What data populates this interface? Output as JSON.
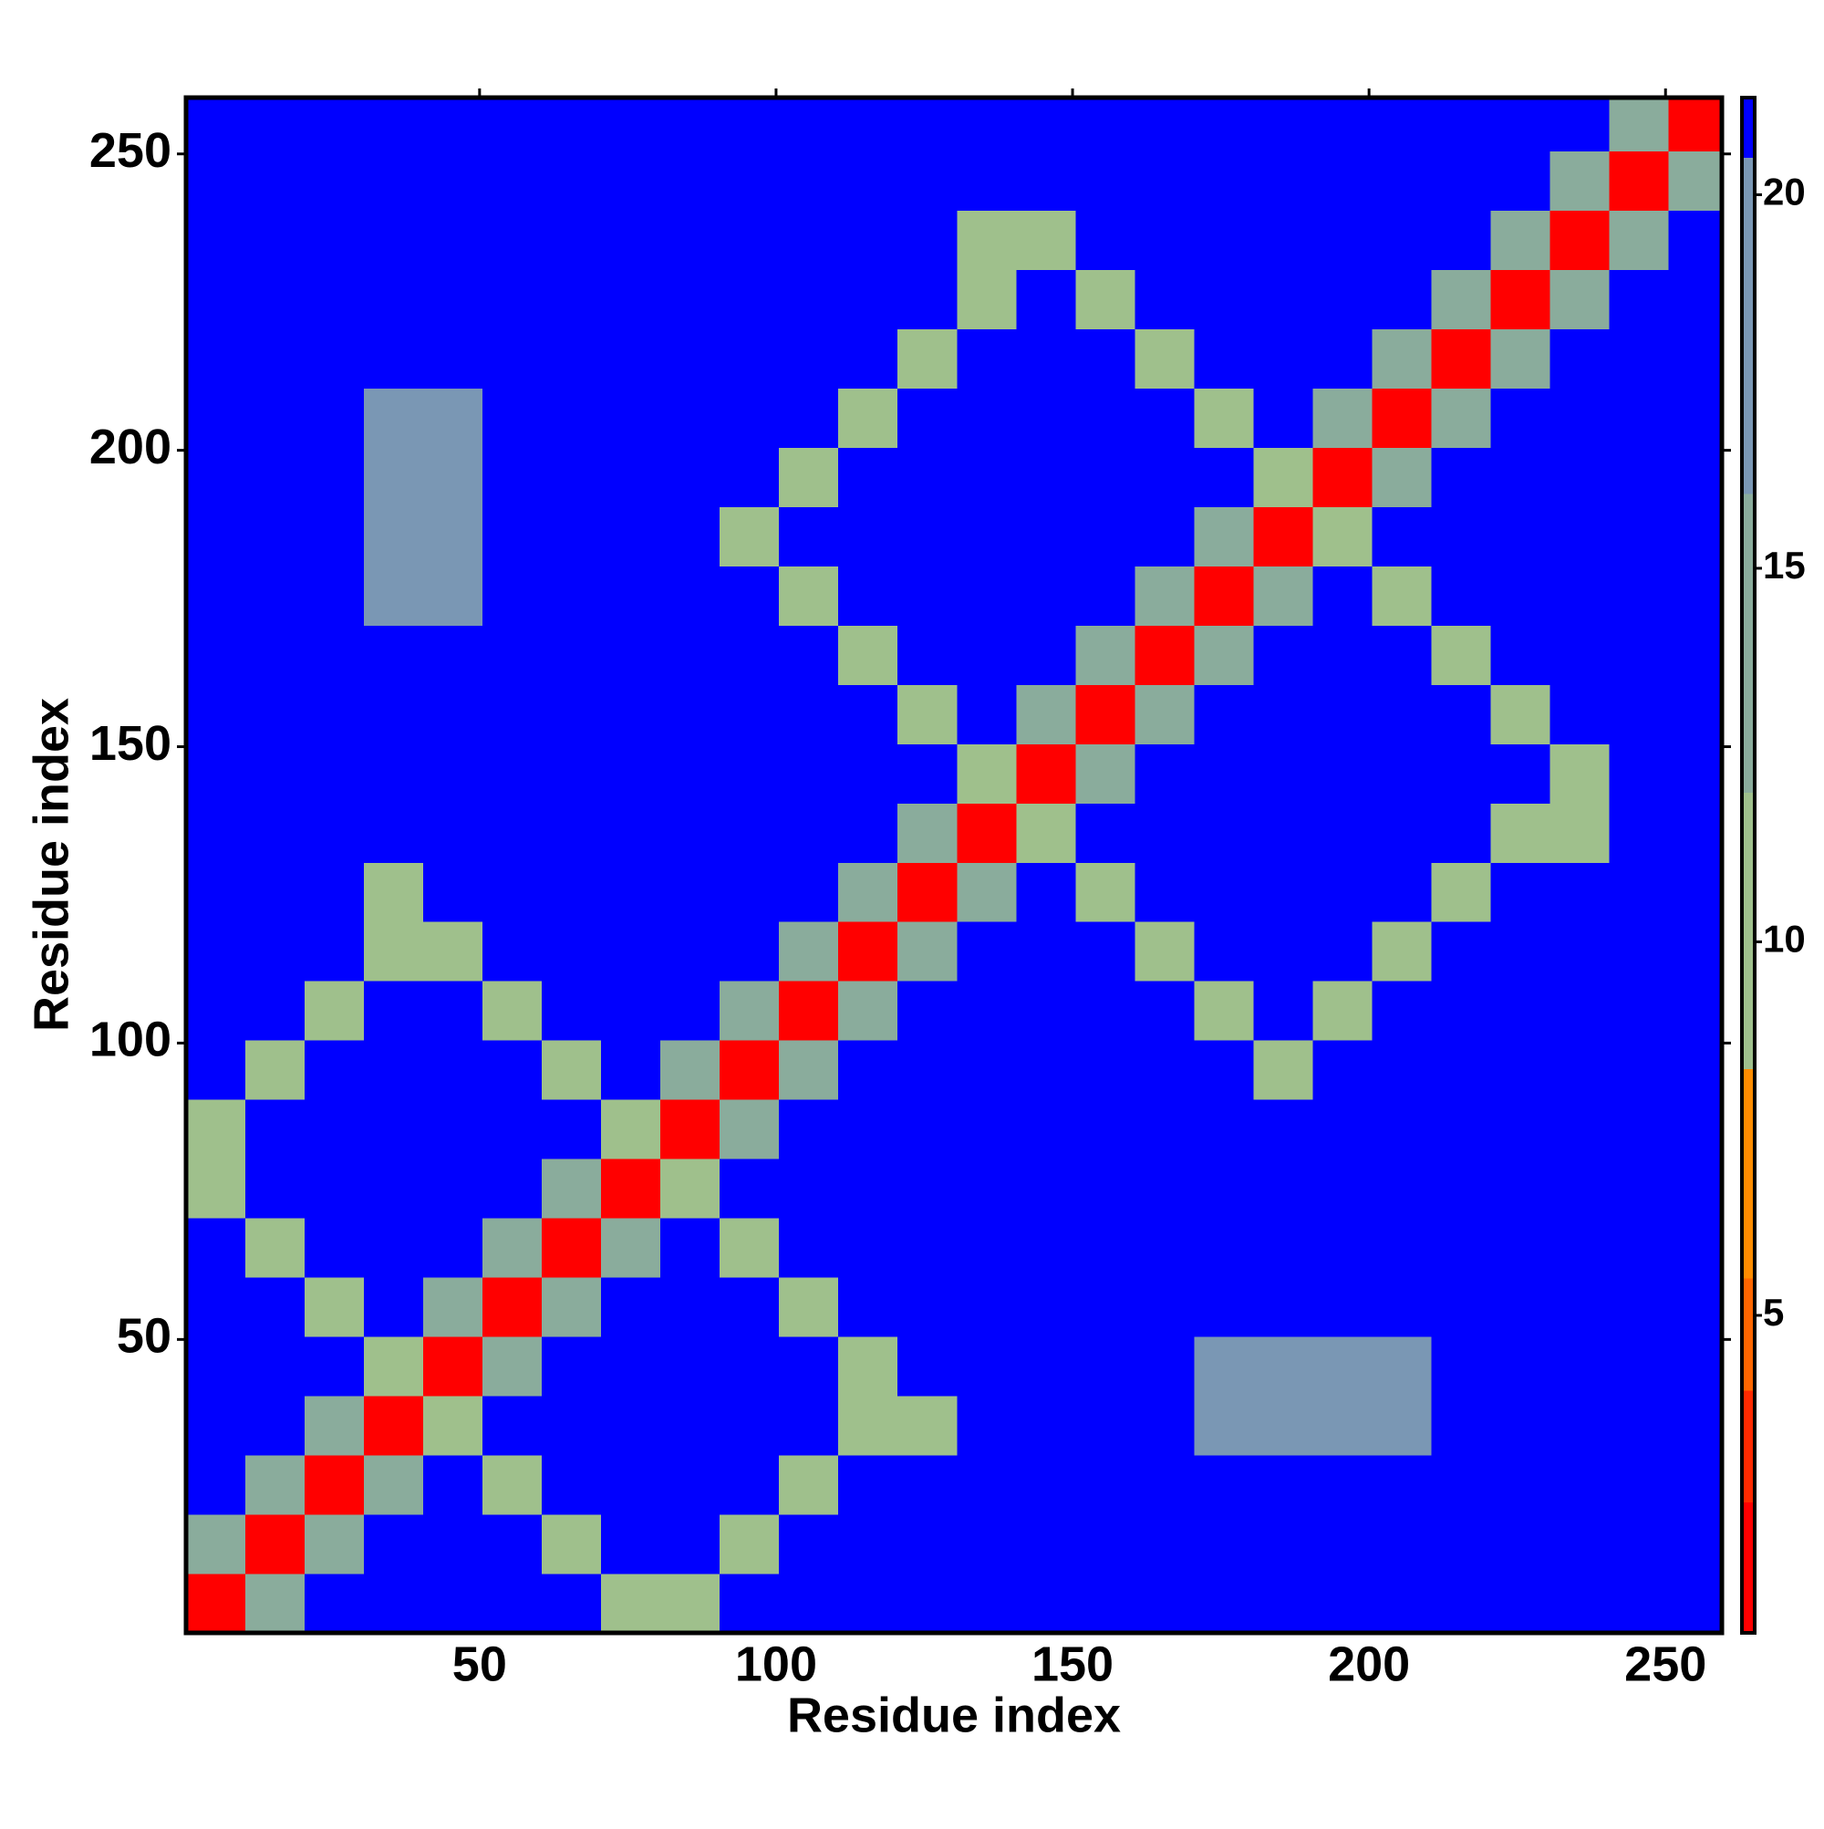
{
  "chart_data": {
    "type": "heatmap",
    "xlabel": "Residue index",
    "ylabel": "Residue index",
    "xlim": [
      0.5,
      259.5
    ],
    "ylim": [
      0.5,
      259.5
    ],
    "xticks": [
      50,
      100,
      150,
      200,
      250
    ],
    "yticks": [
      50,
      100,
      150,
      200,
      250
    ],
    "xbins": [
      0.5,
      10.5,
      20.5,
      30.5,
      40.5,
      50.5,
      60.5,
      70.5,
      80.5,
      90.5,
      100.5,
      110.5,
      120.5,
      130.5,
      140.5,
      150.5,
      160.5,
      170.5,
      180.5,
      190.5,
      200.5,
      210.5,
      220.5,
      230.5,
      240.5,
      250.5,
      259.5
    ],
    "ybins": [
      0.5,
      10.5,
      20.5,
      30.5,
      40.5,
      50.5,
      60.5,
      70.5,
      80.5,
      90.5,
      100.5,
      110.5,
      120.5,
      130.5,
      140.5,
      150.5,
      160.5,
      170.5,
      180.5,
      190.5,
      200.5,
      210.5,
      220.5,
      230.5,
      240.5,
      250.5,
      259.5
    ],
    "values": [
      [
        2,
        12,
        21,
        21,
        21,
        21,
        21,
        11,
        11,
        21,
        21,
        21,
        21,
        21,
        21,
        21,
        21,
        21,
        21,
        21,
        21,
        21,
        21,
        21,
        21,
        21
      ],
      [
        12,
        2,
        12,
        21,
        21,
        21,
        11,
        21,
        21,
        11,
        21,
        21,
        21,
        21,
        21,
        21,
        21,
        21,
        21,
        21,
        21,
        21,
        21,
        21,
        21,
        21
      ],
      [
        21,
        12,
        2,
        12,
        21,
        11,
        21,
        21,
        21,
        21,
        11,
        21,
        21,
        21,
        21,
        21,
        21,
        21,
        21,
        21,
        21,
        21,
        21,
        21,
        21,
        21
      ],
      [
        21,
        21,
        12,
        2,
        11,
        21,
        21,
        21,
        21,
        21,
        21,
        11,
        11,
        21,
        21,
        21,
        21,
        19,
        19,
        19,
        19,
        21,
        21,
        21,
        21,
        21
      ],
      [
        21,
        21,
        21,
        11,
        2,
        12,
        21,
        21,
        21,
        21,
        21,
        11,
        21,
        21,
        21,
        21,
        21,
        19,
        19,
        19,
        19,
        21,
        21,
        21,
        21,
        21
      ],
      [
        21,
        21,
        11,
        21,
        12,
        2,
        12,
        21,
        21,
        21,
        11,
        21,
        21,
        21,
        21,
        21,
        21,
        21,
        21,
        21,
        21,
        21,
        21,
        21,
        21,
        21
      ],
      [
        21,
        11,
        21,
        21,
        21,
        12,
        2,
        12,
        21,
        11,
        21,
        21,
        21,
        21,
        21,
        21,
        21,
        21,
        21,
        21,
        21,
        21,
        21,
        21,
        21,
        21
      ],
      [
        11,
        21,
        21,
        21,
        21,
        21,
        12,
        2,
        11,
        21,
        21,
        21,
        21,
        21,
        21,
        21,
        21,
        21,
        21,
        21,
        21,
        21,
        21,
        21,
        21,
        21
      ],
      [
        11,
        21,
        21,
        21,
        21,
        21,
        21,
        11,
        2,
        12,
        21,
        21,
        21,
        21,
        21,
        21,
        21,
        21,
        21,
        21,
        21,
        21,
        21,
        21,
        21,
        21
      ],
      [
        21,
        11,
        21,
        21,
        21,
        21,
        11,
        21,
        12,
        2,
        12,
        21,
        21,
        21,
        21,
        21,
        21,
        21,
        11,
        21,
        21,
        21,
        21,
        21,
        21,
        21
      ],
      [
        21,
        21,
        11,
        21,
        21,
        11,
        21,
        21,
        21,
        12,
        2,
        12,
        21,
        21,
        21,
        21,
        21,
        11,
        21,
        11,
        21,
        21,
        21,
        21,
        21,
        21
      ],
      [
        21,
        21,
        21,
        11,
        11,
        21,
        21,
        21,
        21,
        21,
        12,
        2,
        12,
        21,
        21,
        21,
        11,
        21,
        21,
        21,
        11,
        21,
        21,
        21,
        21,
        21
      ],
      [
        21,
        21,
        21,
        11,
        21,
        21,
        21,
        21,
        21,
        21,
        21,
        12,
        2,
        12,
        21,
        11,
        21,
        21,
        21,
        21,
        21,
        11,
        21,
        21,
        21,
        21
      ],
      [
        21,
        21,
        21,
        21,
        21,
        21,
        21,
        21,
        21,
        21,
        21,
        21,
        12,
        2,
        11,
        21,
        21,
        21,
        21,
        21,
        21,
        21,
        11,
        11,
        21,
        21
      ],
      [
        21,
        21,
        21,
        21,
        21,
        21,
        21,
        21,
        21,
        21,
        21,
        21,
        21,
        11,
        2,
        12,
        21,
        21,
        21,
        21,
        21,
        21,
        21,
        11,
        21,
        21
      ],
      [
        21,
        21,
        21,
        21,
        21,
        21,
        21,
        21,
        21,
        21,
        21,
        21,
        11,
        21,
        12,
        2,
        12,
        21,
        21,
        21,
        21,
        21,
        11,
        21,
        21,
        21
      ],
      [
        21,
        21,
        21,
        21,
        21,
        21,
        21,
        21,
        21,
        21,
        21,
        11,
        21,
        21,
        21,
        12,
        2,
        12,
        21,
        21,
        21,
        11,
        21,
        21,
        21,
        21
      ],
      [
        21,
        21,
        21,
        19,
        19,
        21,
        21,
        21,
        21,
        21,
        11,
        21,
        21,
        21,
        21,
        21,
        12,
        2,
        12,
        21,
        11,
        21,
        21,
        21,
        21,
        21
      ],
      [
        21,
        21,
        21,
        19,
        19,
        21,
        21,
        21,
        21,
        11,
        21,
        21,
        21,
        21,
        21,
        21,
        21,
        12,
        2,
        11,
        21,
        21,
        21,
        21,
        21,
        21
      ],
      [
        21,
        21,
        21,
        19,
        19,
        21,
        21,
        21,
        21,
        21,
        11,
        21,
        21,
        21,
        21,
        21,
        21,
        21,
        11,
        2,
        12,
        21,
        21,
        21,
        21,
        21
      ],
      [
        21,
        21,
        21,
        19,
        19,
        21,
        21,
        21,
        21,
        21,
        21,
        11,
        21,
        21,
        21,
        21,
        21,
        11,
        21,
        12,
        2,
        12,
        21,
        21,
        21,
        21
      ],
      [
        21,
        21,
        21,
        21,
        21,
        21,
        21,
        21,
        21,
        21,
        21,
        21,
        11,
        21,
        21,
        21,
        11,
        21,
        21,
        21,
        12,
        2,
        12,
        21,
        21,
        21
      ],
      [
        21,
        21,
        21,
        21,
        21,
        21,
        21,
        21,
        21,
        21,
        21,
        21,
        21,
        11,
        21,
        11,
        21,
        21,
        21,
        21,
        21,
        12,
        2,
        12,
        21,
        21
      ],
      [
        21,
        21,
        21,
        21,
        21,
        21,
        21,
        21,
        21,
        21,
        21,
        21,
        21,
        11,
        11,
        21,
        21,
        21,
        21,
        21,
        21,
        21,
        12,
        2,
        12,
        21
      ],
      [
        21,
        21,
        21,
        21,
        21,
        21,
        21,
        21,
        21,
        21,
        21,
        21,
        21,
        21,
        21,
        21,
        21,
        21,
        21,
        21,
        21,
        21,
        21,
        12,
        2,
        12
      ],
      [
        21,
        21,
        21,
        21,
        21,
        21,
        21,
        21,
        21,
        21,
        21,
        21,
        21,
        21,
        21,
        21,
        21,
        21,
        21,
        21,
        21,
        21,
        21,
        21,
        12,
        2
      ]
    ],
    "colorbar": {
      "zlim": [
        0.75,
        21.3
      ],
      "ticks": [
        5,
        10,
        15,
        20
      ],
      "colorscale": [
        [
          0.75,
          "#ff0000"
        ],
        [
          2.5,
          "#ff2a00"
        ],
        [
          4,
          "#ff6600"
        ],
        [
          5.5,
          "#ff8c00"
        ],
        [
          8.3,
          "#9fc08c"
        ],
        [
          12,
          "#8aac9c"
        ],
        [
          16,
          "#7a97b4"
        ],
        [
          20.5,
          "#0000ff"
        ]
      ]
    }
  }
}
